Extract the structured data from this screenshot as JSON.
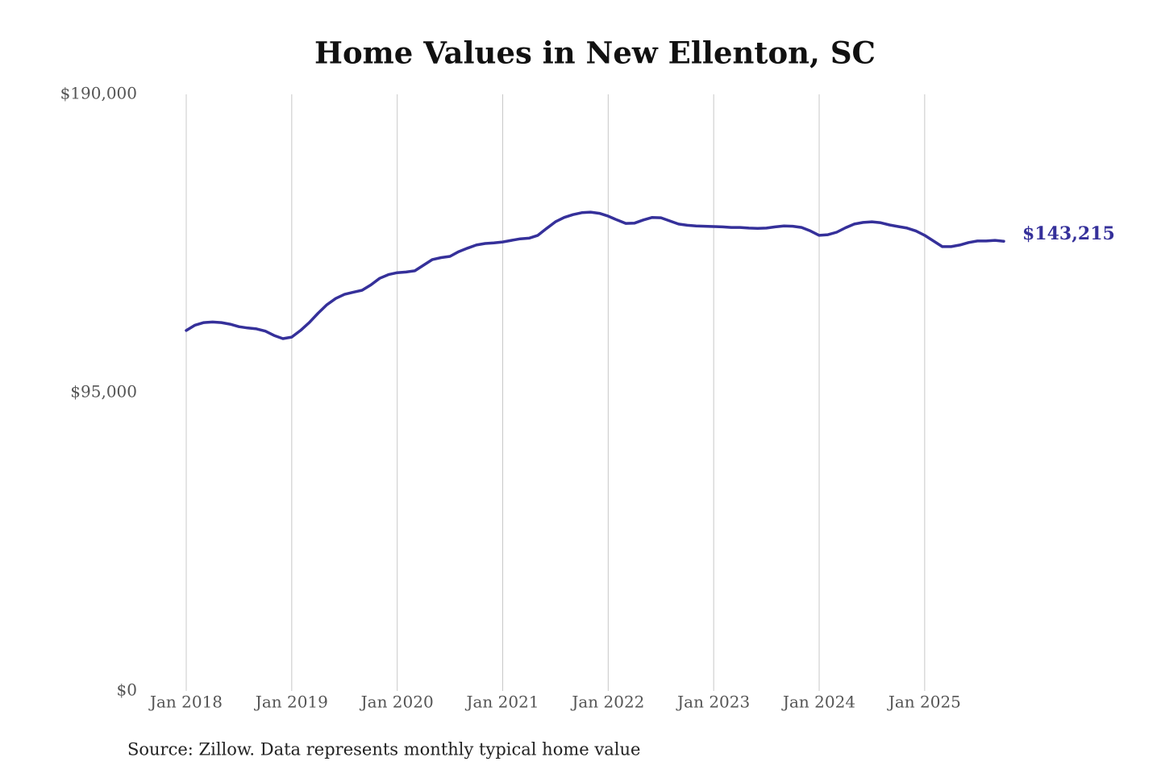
{
  "chart_data": {
    "type": "line",
    "title": "Home Values in New Ellenton, SC",
    "source": "Source: Zillow. Data represents monthly typical home value",
    "color": "#35309a",
    "x": [
      "2018-01",
      "2018-02",
      "2018-03",
      "2018-04",
      "2018-05",
      "2018-06",
      "2018-07",
      "2018-08",
      "2018-09",
      "2018-10",
      "2018-11",
      "2018-12",
      "2019-01",
      "2019-02",
      "2019-03",
      "2019-04",
      "2019-05",
      "2019-06",
      "2019-07",
      "2019-08",
      "2019-09",
      "2019-10",
      "2019-11",
      "2019-12",
      "2020-01",
      "2020-02",
      "2020-03",
      "2020-04",
      "2020-05",
      "2020-06",
      "2020-07",
      "2020-08",
      "2020-09",
      "2020-10",
      "2020-11",
      "2020-12",
      "2021-01",
      "2021-02",
      "2021-03",
      "2021-04",
      "2021-05",
      "2021-06",
      "2021-07",
      "2021-08",
      "2021-09",
      "2021-10",
      "2021-11",
      "2021-12",
      "2022-01",
      "2022-02",
      "2022-03",
      "2022-04",
      "2022-05",
      "2022-06",
      "2022-07",
      "2022-08",
      "2022-09",
      "2022-10",
      "2022-11",
      "2022-12",
      "2023-01",
      "2023-02",
      "2023-03",
      "2023-04",
      "2023-05",
      "2023-06",
      "2023-07",
      "2023-08",
      "2023-09",
      "2023-10",
      "2023-11",
      "2023-12",
      "2024-01",
      "2024-02",
      "2024-03",
      "2024-04",
      "2024-05",
      "2024-06",
      "2024-07",
      "2024-08",
      "2024-09",
      "2024-10",
      "2024-11",
      "2024-12",
      "2025-01",
      "2025-02",
      "2025-03",
      "2025-04",
      "2025-05",
      "2025-06",
      "2025-07",
      "2025-08",
      "2025-09",
      "2025-10"
    ],
    "values": [
      114800,
      116500,
      117300,
      117500,
      117300,
      116800,
      116000,
      115600,
      115300,
      114600,
      113200,
      112200,
      112700,
      114800,
      117300,
      120300,
      123000,
      125000,
      126300,
      127000,
      127600,
      129300,
      131400,
      132600,
      133200,
      133400,
      133800,
      135600,
      137400,
      138000,
      138400,
      139900,
      141000,
      142000,
      142500,
      142700,
      143000,
      143500,
      144000,
      144200,
      145100,
      147300,
      149400,
      150800,
      151700,
      152300,
      152500,
      152100,
      151200,
      150000,
      148900,
      149000,
      150000,
      150800,
      150700,
      149700,
      148700,
      148300,
      148100,
      148000,
      147900,
      147800,
      147600,
      147600,
      147400,
      147300,
      147400,
      147800,
      148100,
      148000,
      147600,
      146500,
      145100,
      145300,
      146100,
      147500,
      148700,
      149200,
      149400,
      149100,
      148400,
      147900,
      147400,
      146500,
      145100,
      143300,
      141500,
      141500,
      142000,
      142800,
      143300,
      143300,
      143500,
      143215
    ],
    "value_labels": [
      null,
      null,
      null,
      null,
      null,
      null,
      null,
      null,
      null,
      null,
      null,
      null,
      null,
      null,
      null,
      null,
      null,
      null,
      null,
      null,
      null,
      null,
      null,
      null,
      null,
      null,
      null,
      null,
      null,
      null,
      null,
      null,
      null,
      null,
      null,
      null,
      null,
      null,
      null,
      null,
      null,
      null,
      null,
      null,
      null,
      null,
      null,
      null,
      null,
      null,
      null,
      null,
      null,
      null,
      null,
      null,
      null,
      null,
      null,
      null,
      null,
      null,
      null,
      null,
      null,
      null,
      null,
      null,
      null,
      null,
      null,
      null,
      null,
      null,
      null,
      null,
      null,
      null,
      null,
      null,
      null,
      null,
      null,
      null,
      null,
      null,
      null,
      null,
      null,
      null,
      null,
      null,
      null,
      "$143,215"
    ],
    "xticks": [
      {
        "value": "2018-01",
        "label": "Jan 2018"
      },
      {
        "value": "2019-01",
        "label": "Jan 2019"
      },
      {
        "value": "2020-01",
        "label": "Jan 2020"
      },
      {
        "value": "2021-01",
        "label": "Jan 2021"
      },
      {
        "value": "2022-01",
        "label": "Jan 2022"
      },
      {
        "value": "2023-01",
        "label": "Jan 2023"
      },
      {
        "value": "2024-01",
        "label": "Jan 2024"
      },
      {
        "value": "2025-01",
        "label": "Jan 2025"
      }
    ],
    "ylim": [
      0,
      190000
    ],
    "yticks": [
      {
        "value": 0,
        "label": "$0"
      },
      {
        "value": 95000,
        "label": "$95,000"
      },
      {
        "value": 190000,
        "label": "$190,000"
      }
    ],
    "grid": "x"
  }
}
